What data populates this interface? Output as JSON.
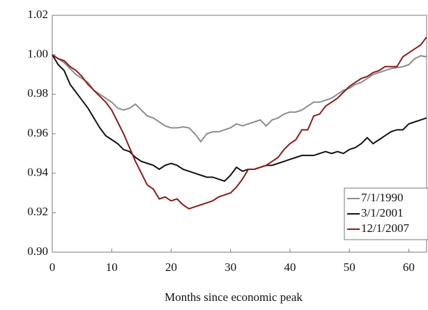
{
  "chart_data": {
    "type": "line",
    "x_label": "Months since economic peak",
    "x": [
      0,
      1,
      2,
      3,
      4,
      5,
      6,
      7,
      8,
      9,
      10,
      11,
      12,
      13,
      14,
      15,
      16,
      17,
      18,
      19,
      20,
      21,
      22,
      23,
      24,
      25,
      26,
      27,
      28,
      29,
      30,
      31,
      32,
      33,
      34,
      35,
      36,
      37,
      38,
      39,
      40,
      41,
      42,
      43,
      44,
      45,
      46,
      47,
      48,
      49,
      50,
      51,
      52,
      53,
      54,
      55,
      56,
      57,
      58,
      59,
      60,
      61,
      62,
      63
    ],
    "xlim": [
      0,
      63
    ],
    "xticks": [
      0,
      10,
      20,
      30,
      40,
      50,
      60
    ],
    "ylim": [
      0.9,
      1.02
    ],
    "yticks": [
      {
        "value": 0.9,
        "label": "0.90"
      },
      0.92,
      0.94,
      0.96,
      0.98,
      {
        "value": 1.0,
        "label": "1.00"
      },
      1.02
    ],
    "grid": false,
    "legend": "lower right",
    "series": [
      {
        "name": "7/1/1990",
        "color": "#8c8c8c",
        "values": [
          1.0,
          0.998,
          0.996,
          0.993,
          0.99,
          0.988,
          0.986,
          0.982,
          0.98,
          0.978,
          0.976,
          0.973,
          0.972,
          0.973,
          0.975,
          0.972,
          0.969,
          0.968,
          0.966,
          0.964,
          0.963,
          0.963,
          0.9635,
          0.963,
          0.96,
          0.956,
          0.96,
          0.961,
          0.961,
          0.962,
          0.963,
          0.965,
          0.964,
          0.965,
          0.966,
          0.967,
          0.964,
          0.967,
          0.968,
          0.97,
          0.971,
          0.971,
          0.972,
          0.974,
          0.976,
          0.976,
          0.977,
          0.978,
          0.98,
          0.982,
          0.983,
          0.985,
          0.986,
          0.988,
          0.99,
          0.991,
          0.992,
          0.993,
          0.9935,
          0.994,
          0.995,
          0.998,
          0.9995,
          0.999
        ]
      },
      {
        "name": "3/1/2001",
        "color": "#111111",
        "values": [
          1.0,
          0.995,
          0.992,
          0.985,
          0.981,
          0.977,
          0.973,
          0.968,
          0.963,
          0.959,
          0.957,
          0.955,
          0.952,
          0.951,
          0.948,
          0.946,
          0.945,
          0.944,
          0.942,
          0.944,
          0.945,
          0.944,
          0.942,
          0.941,
          0.94,
          0.939,
          0.938,
          0.938,
          0.937,
          0.936,
          0.939,
          0.943,
          0.941,
          0.942,
          0.942,
          0.943,
          0.944,
          0.944,
          0.945,
          0.946,
          0.947,
          0.948,
          0.949,
          0.949,
          0.949,
          0.95,
          0.951,
          0.95,
          0.951,
          0.95,
          0.952,
          0.953,
          0.955,
          0.958,
          0.955,
          0.957,
          0.959,
          0.961,
          0.962,
          0.962,
          0.965,
          0.966,
          0.967,
          0.968
        ]
      },
      {
        "name": "12/1/2007",
        "color": "#8b1a1a",
        "values": [
          1.0,
          0.998,
          0.997,
          0.994,
          0.992,
          0.989,
          0.985,
          0.982,
          0.979,
          0.976,
          0.972,
          0.966,
          0.96,
          0.953,
          0.946,
          0.94,
          0.934,
          0.932,
          0.927,
          0.928,
          0.926,
          0.927,
          0.924,
          0.922,
          0.923,
          0.924,
          0.925,
          0.926,
          0.928,
          0.929,
          0.93,
          0.933,
          0.937,
          0.942,
          0.942,
          0.943,
          0.944,
          0.946,
          0.948,
          0.952,
          0.955,
          0.957,
          0.962,
          0.962,
          0.969,
          0.97,
          0.974,
          0.976,
          0.978,
          0.981,
          0.984,
          0.986,
          0.988,
          0.989,
          0.991,
          0.992,
          0.994,
          0.994,
          0.994,
          0.999,
          1.001,
          1.003,
          1.005,
          1.009
        ]
      }
    ]
  }
}
